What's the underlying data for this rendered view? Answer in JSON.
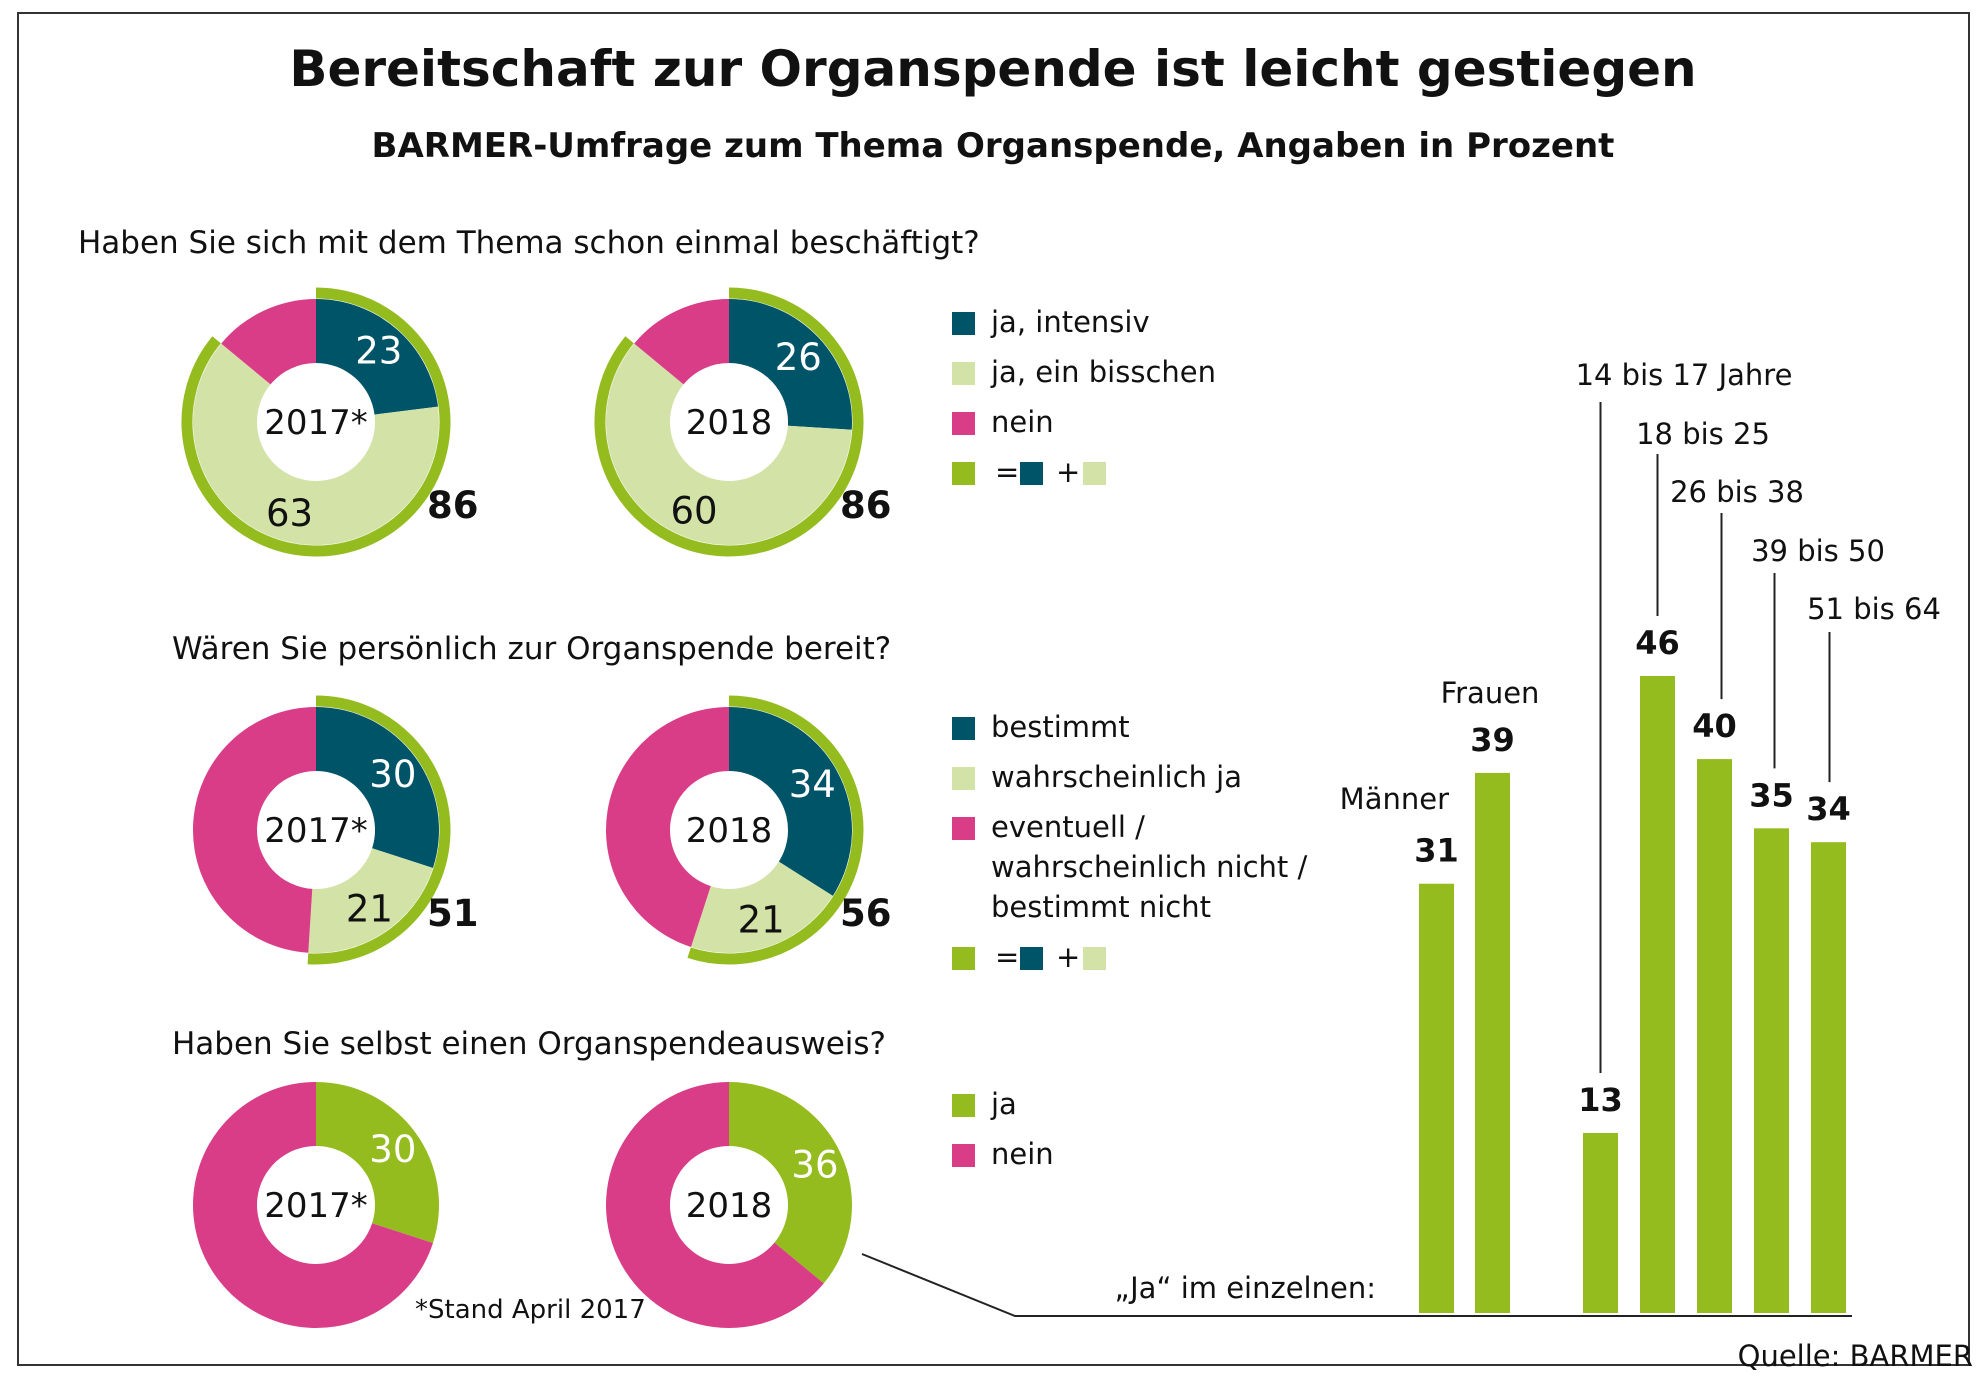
{
  "title": "Bereitschaft zur Organspende ist leicht gestiegen",
  "subtitle": "BARMER-Umfrage zum Thema Organspende, Angaben in Prozent",
  "source": "Quelle: BARMER",
  "footnote": "*Stand April 2017",
  "colors": {
    "dark_teal": "#005467",
    "light_green": "#d3e3a8",
    "magenta": "#d93d87",
    "green": "#95bc1f",
    "frame": "#333333"
  },
  "legend_equation": {
    "eq": "=",
    "plus": "+"
  },
  "chart_data": [
    {
      "type": "pie",
      "question": "Haben Sie sich mit dem Thema schon einmal beschäftigt?",
      "legend": [
        "ja, intensiv",
        "ja, ein bisschen",
        "nein"
      ],
      "donuts": [
        {
          "year": "2017*",
          "values": [
            23,
            63,
            14
          ],
          "labels": [
            "23",
            "63",
            ""
          ],
          "total": "86"
        },
        {
          "year": "2018",
          "values": [
            26,
            60,
            14
          ],
          "labels": [
            "26",
            "60",
            ""
          ],
          "total": "86"
        }
      ]
    },
    {
      "type": "pie",
      "question": "Wären Sie persönlich zur Organspende bereit?",
      "legend": [
        "bestimmt",
        "wahrscheinlich ja",
        "eventuell /",
        "wahrscheinlich nicht /",
        "bestimmt nicht"
      ],
      "donuts": [
        {
          "year": "2017*",
          "values": [
            30,
            21,
            49
          ],
          "labels": [
            "30",
            "21",
            ""
          ],
          "total": "51"
        },
        {
          "year": "2018",
          "values": [
            34,
            21,
            45
          ],
          "labels": [
            "34",
            "21",
            ""
          ],
          "total": "56"
        }
      ]
    },
    {
      "type": "pie",
      "question": "Haben Sie selbst einen Organspendeausweis?",
      "legend": [
        "ja",
        "nein"
      ],
      "donuts": [
        {
          "year": "2017*",
          "values": [
            30,
            70
          ],
          "labels": [
            "30",
            ""
          ]
        },
        {
          "year": "2018",
          "values": [
            36,
            64
          ],
          "labels": [
            "36",
            ""
          ]
        }
      ]
    },
    {
      "type": "bar",
      "title": "„Ja“ im einzelnen:",
      "categories": [
        "Männer",
        "Frauen",
        "14 bis 17 Jahre",
        "18 bis 25",
        "26 bis 38",
        "39 bis 50",
        "51 bis 64"
      ],
      "values": [
        31,
        39,
        13,
        46,
        40,
        35,
        34
      ],
      "ylim": [
        0,
        46
      ]
    }
  ]
}
